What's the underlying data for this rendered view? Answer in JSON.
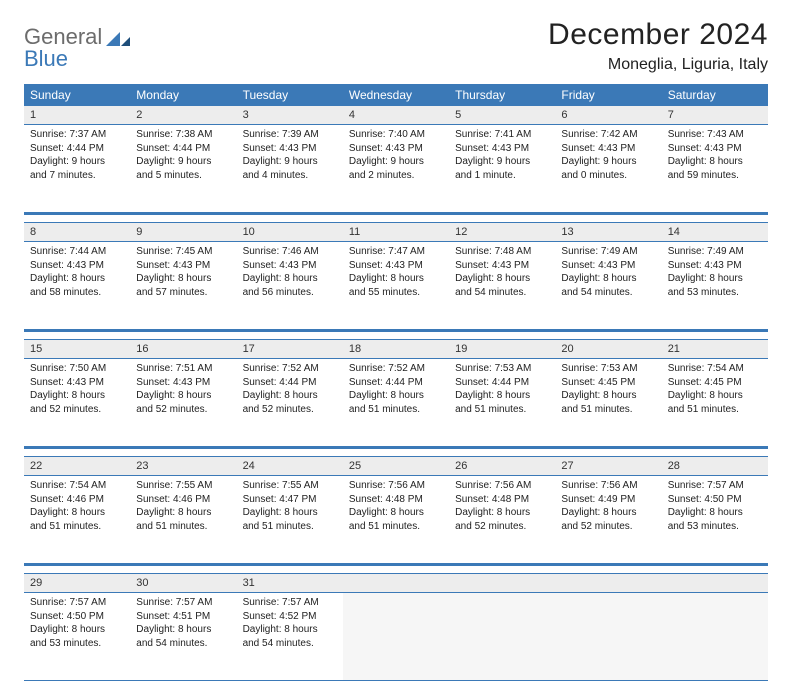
{
  "brand": {
    "part1": "General",
    "part2": "Blue"
  },
  "title": "December 2024",
  "location": "Moneglia, Liguria, Italy",
  "colors": {
    "header_bg": "#3b79b7",
    "header_text": "#ffffff",
    "daynum_bg": "#ededed",
    "page_bg": "#ffffff",
    "rule": "#3b79b7",
    "logo_gray": "#6c6c6c",
    "logo_blue": "#3b79b7"
  },
  "typography": {
    "title_fontsize": 30,
    "location_fontsize": 16,
    "dayhead_fontsize": 12,
    "daynum_fontsize": 11,
    "detail_fontsize": 10
  },
  "day_headers": [
    "Sunday",
    "Monday",
    "Tuesday",
    "Wednesday",
    "Thursday",
    "Friday",
    "Saturday"
  ],
  "weeks": [
    [
      {
        "n": "1",
        "sunrise": "Sunrise: 7:37 AM",
        "sunset": "Sunset: 4:44 PM",
        "day": "Daylight: 9 hours and 7 minutes."
      },
      {
        "n": "2",
        "sunrise": "Sunrise: 7:38 AM",
        "sunset": "Sunset: 4:44 PM",
        "day": "Daylight: 9 hours and 5 minutes."
      },
      {
        "n": "3",
        "sunrise": "Sunrise: 7:39 AM",
        "sunset": "Sunset: 4:43 PM",
        "day": "Daylight: 9 hours and 4 minutes."
      },
      {
        "n": "4",
        "sunrise": "Sunrise: 7:40 AM",
        "sunset": "Sunset: 4:43 PM",
        "day": "Daylight: 9 hours and 2 minutes."
      },
      {
        "n": "5",
        "sunrise": "Sunrise: 7:41 AM",
        "sunset": "Sunset: 4:43 PM",
        "day": "Daylight: 9 hours and 1 minute."
      },
      {
        "n": "6",
        "sunrise": "Sunrise: 7:42 AM",
        "sunset": "Sunset: 4:43 PM",
        "day": "Daylight: 9 hours and 0 minutes."
      },
      {
        "n": "7",
        "sunrise": "Sunrise: 7:43 AM",
        "sunset": "Sunset: 4:43 PM",
        "day": "Daylight: 8 hours and 59 minutes."
      }
    ],
    [
      {
        "n": "8",
        "sunrise": "Sunrise: 7:44 AM",
        "sunset": "Sunset: 4:43 PM",
        "day": "Daylight: 8 hours and 58 minutes."
      },
      {
        "n": "9",
        "sunrise": "Sunrise: 7:45 AM",
        "sunset": "Sunset: 4:43 PM",
        "day": "Daylight: 8 hours and 57 minutes."
      },
      {
        "n": "10",
        "sunrise": "Sunrise: 7:46 AM",
        "sunset": "Sunset: 4:43 PM",
        "day": "Daylight: 8 hours and 56 minutes."
      },
      {
        "n": "11",
        "sunrise": "Sunrise: 7:47 AM",
        "sunset": "Sunset: 4:43 PM",
        "day": "Daylight: 8 hours and 55 minutes."
      },
      {
        "n": "12",
        "sunrise": "Sunrise: 7:48 AM",
        "sunset": "Sunset: 4:43 PM",
        "day": "Daylight: 8 hours and 54 minutes."
      },
      {
        "n": "13",
        "sunrise": "Sunrise: 7:49 AM",
        "sunset": "Sunset: 4:43 PM",
        "day": "Daylight: 8 hours and 54 minutes."
      },
      {
        "n": "14",
        "sunrise": "Sunrise: 7:49 AM",
        "sunset": "Sunset: 4:43 PM",
        "day": "Daylight: 8 hours and 53 minutes."
      }
    ],
    [
      {
        "n": "15",
        "sunrise": "Sunrise: 7:50 AM",
        "sunset": "Sunset: 4:43 PM",
        "day": "Daylight: 8 hours and 52 minutes."
      },
      {
        "n": "16",
        "sunrise": "Sunrise: 7:51 AM",
        "sunset": "Sunset: 4:43 PM",
        "day": "Daylight: 8 hours and 52 minutes."
      },
      {
        "n": "17",
        "sunrise": "Sunrise: 7:52 AM",
        "sunset": "Sunset: 4:44 PM",
        "day": "Daylight: 8 hours and 52 minutes."
      },
      {
        "n": "18",
        "sunrise": "Sunrise: 7:52 AM",
        "sunset": "Sunset: 4:44 PM",
        "day": "Daylight: 8 hours and 51 minutes."
      },
      {
        "n": "19",
        "sunrise": "Sunrise: 7:53 AM",
        "sunset": "Sunset: 4:44 PM",
        "day": "Daylight: 8 hours and 51 minutes."
      },
      {
        "n": "20",
        "sunrise": "Sunrise: 7:53 AM",
        "sunset": "Sunset: 4:45 PM",
        "day": "Daylight: 8 hours and 51 minutes."
      },
      {
        "n": "21",
        "sunrise": "Sunrise: 7:54 AM",
        "sunset": "Sunset: 4:45 PM",
        "day": "Daylight: 8 hours and 51 minutes."
      }
    ],
    [
      {
        "n": "22",
        "sunrise": "Sunrise: 7:54 AM",
        "sunset": "Sunset: 4:46 PM",
        "day": "Daylight: 8 hours and 51 minutes."
      },
      {
        "n": "23",
        "sunrise": "Sunrise: 7:55 AM",
        "sunset": "Sunset: 4:46 PM",
        "day": "Daylight: 8 hours and 51 minutes."
      },
      {
        "n": "24",
        "sunrise": "Sunrise: 7:55 AM",
        "sunset": "Sunset: 4:47 PM",
        "day": "Daylight: 8 hours and 51 minutes."
      },
      {
        "n": "25",
        "sunrise": "Sunrise: 7:56 AM",
        "sunset": "Sunset: 4:48 PM",
        "day": "Daylight: 8 hours and 51 minutes."
      },
      {
        "n": "26",
        "sunrise": "Sunrise: 7:56 AM",
        "sunset": "Sunset: 4:48 PM",
        "day": "Daylight: 8 hours and 52 minutes."
      },
      {
        "n": "27",
        "sunrise": "Sunrise: 7:56 AM",
        "sunset": "Sunset: 4:49 PM",
        "day": "Daylight: 8 hours and 52 minutes."
      },
      {
        "n": "28",
        "sunrise": "Sunrise: 7:57 AM",
        "sunset": "Sunset: 4:50 PM",
        "day": "Daylight: 8 hours and 53 minutes."
      }
    ],
    [
      {
        "n": "29",
        "sunrise": "Sunrise: 7:57 AM",
        "sunset": "Sunset: 4:50 PM",
        "day": "Daylight: 8 hours and 53 minutes."
      },
      {
        "n": "30",
        "sunrise": "Sunrise: 7:57 AM",
        "sunset": "Sunset: 4:51 PM",
        "day": "Daylight: 8 hours and 54 minutes."
      },
      {
        "n": "31",
        "sunrise": "Sunrise: 7:57 AM",
        "sunset": "Sunset: 4:52 PM",
        "day": "Daylight: 8 hours and 54 minutes."
      },
      null,
      null,
      null,
      null
    ]
  ]
}
